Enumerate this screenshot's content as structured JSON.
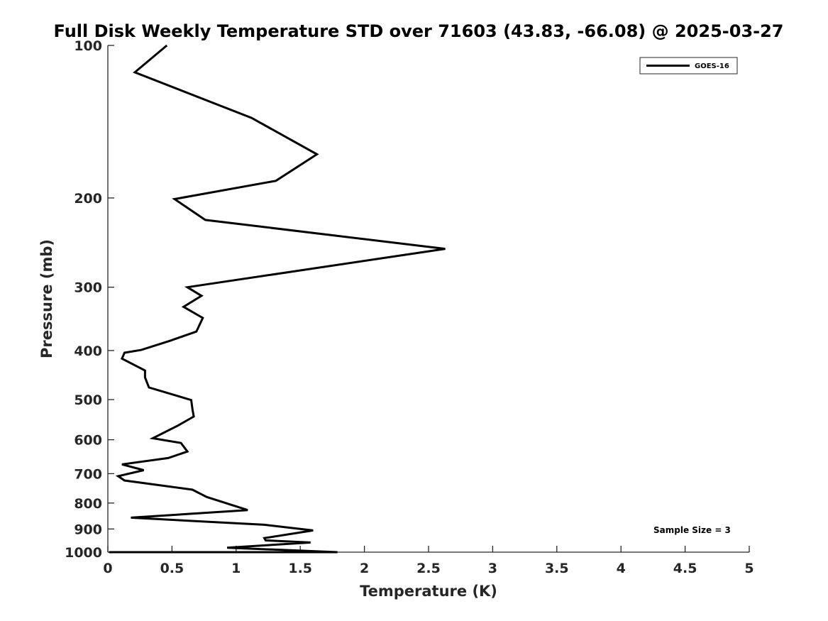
{
  "chart_data": {
    "type": "line",
    "title": "Full Disk Weekly Temperature STD over 71603 (43.83, -66.08) @ 2025-03-27",
    "xlabel": "Temperature (K)",
    "ylabel": "Pressure (mb)",
    "xlim": [
      0,
      5
    ],
    "ylim": [
      100,
      1000
    ],
    "yscale": "log",
    "y_reversed": true,
    "grid": false,
    "x_ticks": [
      0,
      0.5,
      1,
      1.5,
      2,
      2.5,
      3,
      3.5,
      4,
      4.5,
      5
    ],
    "x_tick_labels": [
      "0",
      "0.5",
      "1",
      "1.5",
      "2",
      "2.5",
      "3",
      "3.5",
      "4",
      "4.5",
      "5"
    ],
    "y_ticks": [
      100,
      200,
      300,
      400,
      500,
      600,
      700,
      800,
      900,
      1000
    ],
    "y_tick_labels": [
      "100",
      "200",
      "300",
      "400",
      "500",
      "600",
      "700",
      "800",
      "900",
      "1000"
    ],
    "legend_position": "top-right",
    "annotation": "Sample Size = 3",
    "series": [
      {
        "name": "GOES-16",
        "color": "#000000",
        "x": [
          0.46,
          0.21,
          1.12,
          1.63,
          1.31,
          0.52,
          0.76,
          2.63,
          0.62,
          0.73,
          0.59,
          0.74,
          0.69,
          0.48,
          0.26,
          0.13,
          0.11,
          0.29,
          0.29,
          0.32,
          0.65,
          0.66,
          0.67,
          0.55,
          0.35,
          0.57,
          0.62,
          0.47,
          0.11,
          0.28,
          0.08,
          0.13,
          0.66,
          0.77,
          1.09,
          0.18,
          1.22,
          1.6,
          1.22,
          1.23,
          1.58,
          0.93,
          1.79,
          0.01
        ],
        "y": [
          100,
          113,
          139,
          164,
          185,
          201,
          221,
          252,
          300,
          312,
          328,
          345,
          367,
          383,
          399,
          404,
          415,
          438,
          452,
          473,
          501,
          523,
          540,
          562,
          596,
          609,
          633,
          652,
          671,
          689,
          708,
          722,
          753,
          778,
          826,
          855,
          883,
          906,
          938,
          948,
          957,
          980,
          1000,
          1000
        ]
      }
    ]
  }
}
